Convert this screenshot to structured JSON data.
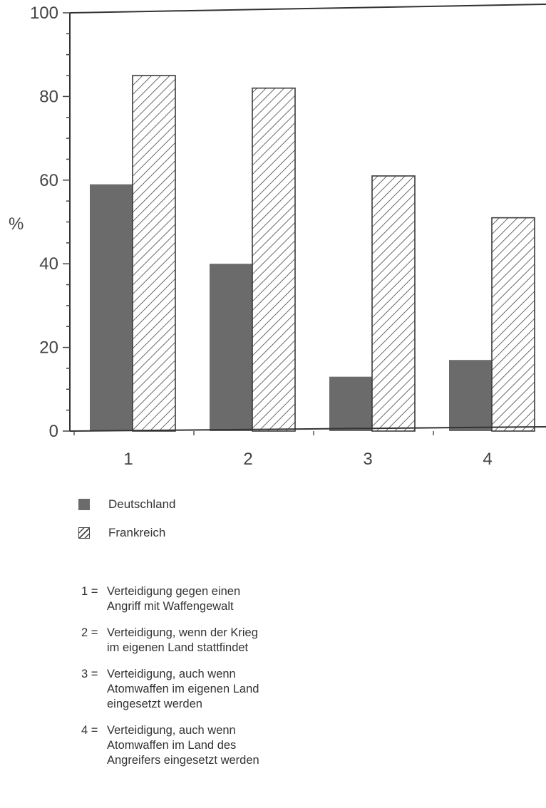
{
  "chart_data": {
    "type": "bar",
    "categories": [
      "1",
      "2",
      "3",
      "4"
    ],
    "series": [
      {
        "name": "Deutschland",
        "values": [
          59,
          40,
          13,
          17
        ],
        "color": "#6b6b6b",
        "pattern": "solid"
      },
      {
        "name": "Frankreich",
        "values": [
          85,
          82,
          61,
          51
        ],
        "color": "#444444",
        "pattern": "hatched"
      }
    ],
    "ylim": [
      0,
      100
    ],
    "yticks": [
      "0",
      "20",
      "40",
      "60",
      "80",
      "100"
    ],
    "ylabel": "%",
    "xlabel": "",
    "title": "",
    "grid": false,
    "legend_position": "bottom-left"
  },
  "legend": {
    "items": [
      {
        "label": "Deutschland"
      },
      {
        "label": "Frankreich"
      }
    ]
  },
  "notes": [
    {
      "num": "1 =",
      "lines": [
        "Verteidigung gegen einen",
        "Angriff mit Waffengewalt"
      ]
    },
    {
      "num": "2 =",
      "lines": [
        "Verteidigung, wenn der Krieg",
        "im eigenen Land stattfindet"
      ]
    },
    {
      "num": "3 =",
      "lines": [
        "Verteidigung, auch wenn",
        "Atomwaffen im eigenen Land",
        "eingesetzt werden"
      ]
    },
    {
      "num": "4 =",
      "lines": [
        "Verteidigung, auch wenn",
        "Atomwaffen im Land des",
        "Angreifers eingesetzt werden"
      ]
    }
  ]
}
